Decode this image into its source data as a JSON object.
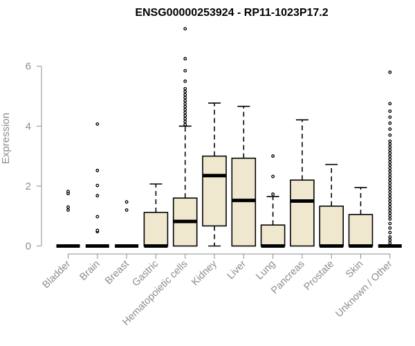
{
  "chart_data": {
    "type": "boxplot",
    "title": "ENSG00000253924 - RP11-1023P17.2",
    "ylabel": "Expression",
    "xlabel": "",
    "ylim": [
      0,
      7.4
    ],
    "yticks": [
      0,
      2,
      4,
      6
    ],
    "box_fill": "#efe8cf",
    "outlier_style": "hollow-circle",
    "categories": [
      "Bladder",
      "Brain",
      "Breast",
      "Gastric",
      "Hematopoietic cells",
      "Kidney",
      "Liver",
      "Lung",
      "Pancreas",
      "Prostate",
      "Skin",
      "Unknown / Other"
    ],
    "boxes": [
      {
        "min": 0,
        "q1": 0,
        "median": 0,
        "q3": 0,
        "max": 0,
        "outliers": [
          1.2,
          1.3,
          1.75,
          1.82
        ]
      },
      {
        "min": 0,
        "q1": 0,
        "median": 0,
        "q3": 0,
        "max": 0,
        "outliers": [
          0.48,
          0.52,
          0.98,
          1.68,
          2.02,
          2.52,
          4.07
        ]
      },
      {
        "min": 0,
        "q1": 0,
        "median": 0,
        "q3": 0,
        "max": 0,
        "outliers": [
          1.2,
          1.47
        ]
      },
      {
        "min": 0,
        "q1": 0,
        "median": 0,
        "q3": 1.12,
        "max": 2.07,
        "outliers": []
      },
      {
        "min": 0,
        "q1": 0,
        "median": 0.82,
        "q3": 1.6,
        "max": 4.0,
        "outliers": [
          4.05,
          4.15,
          4.25,
          4.35,
          4.45,
          4.55,
          4.65,
          4.75,
          4.85,
          4.95,
          5.05,
          5.15,
          5.25,
          5.5,
          5.85,
          6.25,
          7.25
        ]
      },
      {
        "min": 0,
        "q1": 0.67,
        "median": 2.35,
        "q3": 3.0,
        "max": 4.77,
        "outliers": []
      },
      {
        "min": 0,
        "q1": 0,
        "median": 1.52,
        "q3": 2.93,
        "max": 4.66,
        "outliers": []
      },
      {
        "min": 0,
        "q1": 0,
        "median": 0,
        "q3": 0.7,
        "max": 1.65,
        "outliers": [
          1.73,
          2.32,
          3.0
        ]
      },
      {
        "min": 0,
        "q1": 0,
        "median": 1.5,
        "q3": 2.2,
        "max": 4.21,
        "outliers": []
      },
      {
        "min": 0,
        "q1": 0,
        "median": 0,
        "q3": 1.33,
        "max": 2.72,
        "outliers": []
      },
      {
        "min": 0,
        "q1": 0,
        "median": 0,
        "q3": 1.05,
        "max": 1.95,
        "outliers": []
      },
      {
        "min": 0,
        "q1": 0,
        "median": 0,
        "q3": 0,
        "max": 0,
        "outliers": [
          0.1,
          0.2,
          0.3,
          0.45,
          0.6,
          0.75,
          0.9,
          1.0,
          1.1,
          1.2,
          1.3,
          1.4,
          1.5,
          1.6,
          1.7,
          1.8,
          1.9,
          2.0,
          2.1,
          2.2,
          2.3,
          2.4,
          2.5,
          2.6,
          2.7,
          2.8,
          2.9,
          3.0,
          3.1,
          3.2,
          3.3,
          3.4,
          3.5,
          3.7,
          3.9,
          4.1,
          4.3,
          4.5,
          4.75,
          5.8
        ]
      }
    ]
  }
}
